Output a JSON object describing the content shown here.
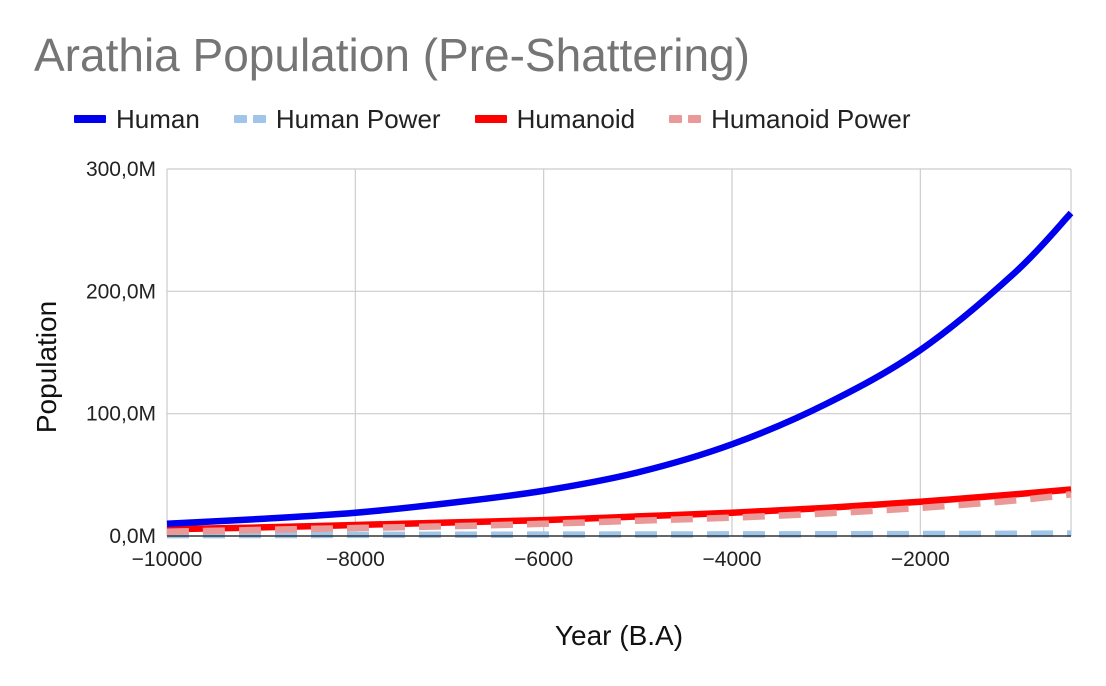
{
  "title": "Arathia Population (Pre-Shattering)",
  "colors": {
    "human": "#0000ee",
    "human_power": "#9fc5e8",
    "humanoid": "#ff0000",
    "humanoid_power": "#ea9999",
    "grid": "#cccccc",
    "axis": "#333333"
  },
  "chart_data": {
    "type": "line",
    "xlabel": "Year (B.A)",
    "ylabel": "Population",
    "xlim": [
      -10000,
      -400
    ],
    "ylim": [
      0,
      300000000
    ],
    "x_ticks": [
      -10000,
      -8000,
      -6000,
      -4000,
      -2000
    ],
    "x_tick_labels": [
      "−10000",
      "−8000",
      "−6000",
      "−4000",
      "−2000"
    ],
    "y_ticks": [
      0,
      100000000,
      200000000,
      300000000
    ],
    "y_tick_labels": [
      "0,0M",
      "100,0M",
      "200,0M",
      "300,0M"
    ],
    "grid": true,
    "legend_position": "top",
    "x": [
      -10000,
      -9000,
      -8000,
      -7000,
      -6000,
      -5000,
      -4000,
      -3000,
      -2000,
      -1000,
      -400
    ],
    "series": [
      {
        "name": "Human",
        "style": "solid",
        "color": "#0000ee",
        "values": [
          10000000,
          14000000,
          19000000,
          27000000,
          37000000,
          52000000,
          75000000,
          108000000,
          152000000,
          215000000,
          264000000
        ]
      },
      {
        "name": "Human Power",
        "style": "dashed",
        "color": "#9fc5e8",
        "values": [
          700000,
          800000,
          900000,
          1000000,
          1100000,
          1200000,
          1300000,
          1400000,
          1600000,
          1800000,
          2000000
        ]
      },
      {
        "name": "Humanoid",
        "style": "solid",
        "color": "#ff0000",
        "values": [
          5500000,
          7000000,
          9000000,
          11000000,
          13000000,
          16000000,
          19000000,
          23000000,
          28000000,
          34000000,
          38000000
        ]
      },
      {
        "name": "Humanoid Power",
        "style": "dashed",
        "color": "#ea9999",
        "values": [
          3500000,
          5000000,
          6500000,
          8000000,
          10000000,
          12500000,
          15000000,
          18500000,
          23000000,
          29000000,
          34000000
        ]
      }
    ]
  }
}
